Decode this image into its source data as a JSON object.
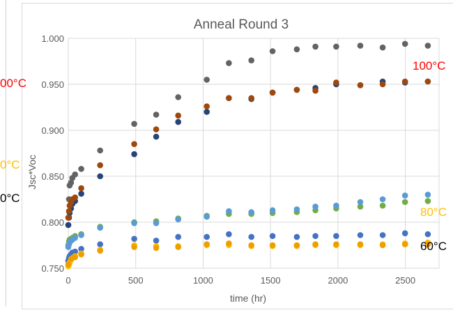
{
  "chart_data": {
    "type": "scatter",
    "title": "Anneal Round 3",
    "xlabel": "time (hr)",
    "ylabel": "Jsc*Voc",
    "xlim": [
      0,
      2750
    ],
    "ylim": [
      0.75,
      1.0
    ],
    "x_ticks": [
      "0",
      "500",
      "1000",
      "1500",
      "2000",
      "2500"
    ],
    "y_ticks": [
      "0.750",
      "0.800",
      "0.850",
      "0.900",
      "0.950",
      "1.000"
    ],
    "grid": true,
    "legend": "none",
    "series": [
      {
        "color": "#636363",
        "points": [
          [
            0,
            0.797
          ],
          [
            5,
            0.825
          ],
          [
            10,
            0.84
          ],
          [
            20,
            0.843
          ],
          [
            30,
            0.848
          ],
          [
            50,
            0.852
          ],
          [
            96,
            0.858
          ],
          [
            236,
            0.878
          ],
          [
            489,
            0.907
          ],
          [
            652,
            0.917
          ],
          [
            815,
            0.936
          ],
          [
            1027,
            0.955
          ],
          [
            1191,
            0.973
          ],
          [
            1358,
            0.976
          ],
          [
            1515,
            0.986
          ],
          [
            1695,
            0.988
          ],
          [
            1833,
            0.991
          ],
          [
            1987,
            0.991
          ],
          [
            2166,
            0.992
          ],
          [
            2332,
            0.99
          ],
          [
            2498,
            0.994
          ],
          [
            2667,
            0.992
          ]
        ]
      },
      {
        "color": "#264478",
        "points": [
          [
            0,
            0.797
          ],
          [
            5,
            0.805
          ],
          [
            10,
            0.81
          ],
          [
            20,
            0.815
          ],
          [
            30,
            0.82
          ],
          [
            50,
            0.823
          ],
          [
            96,
            0.831
          ],
          [
            236,
            0.85
          ],
          [
            489,
            0.874
          ],
          [
            652,
            0.893
          ],
          [
            815,
            0.909
          ],
          [
            1027,
            0.92
          ],
          [
            1191,
            0.935
          ],
          [
            1358,
            0.934
          ],
          [
            1515,
            0.941
          ],
          [
            1695,
            0.944
          ],
          [
            1833,
            0.946
          ],
          [
            1987,
            0.95
          ],
          [
            2166,
            0.949
          ],
          [
            2332,
            0.953
          ],
          [
            2498,
            0.952
          ],
          [
            2667,
            0.953
          ]
        ]
      },
      {
        "color": "#9e480e",
        "points": [
          [
            0,
            0.805
          ],
          [
            5,
            0.812
          ],
          [
            10,
            0.818
          ],
          [
            20,
            0.822
          ],
          [
            30,
            0.825
          ],
          [
            50,
            0.827
          ],
          [
            96,
            0.837
          ],
          [
            236,
            0.862
          ],
          [
            489,
            0.885
          ],
          [
            652,
            0.901
          ],
          [
            815,
            0.916
          ],
          [
            1027,
            0.926
          ],
          [
            1191,
            0.935
          ],
          [
            1358,
            0.935
          ],
          [
            1515,
            0.941
          ],
          [
            1695,
            0.944
          ],
          [
            1833,
            0.943
          ],
          [
            1987,
            0.952
          ],
          [
            2166,
            0.949
          ],
          [
            2332,
            0.95
          ],
          [
            2498,
            0.953
          ],
          [
            2667,
            0.953
          ]
        ]
      },
      {
        "color": "#70ad47",
        "points": [
          [
            0,
            0.775
          ],
          [
            5,
            0.779
          ],
          [
            10,
            0.781
          ],
          [
            20,
            0.782
          ],
          [
            30,
            0.783
          ],
          [
            50,
            0.785
          ],
          [
            96,
            0.787
          ],
          [
            236,
            0.795
          ],
          [
            489,
            0.8
          ],
          [
            652,
            0.801
          ],
          [
            815,
            0.804
          ],
          [
            1027,
            0.807
          ],
          [
            1191,
            0.809
          ],
          [
            1358,
            0.809
          ],
          [
            1515,
            0.81
          ],
          [
            1695,
            0.811
          ],
          [
            1833,
            0.813
          ],
          [
            1987,
            0.815
          ],
          [
            2166,
            0.817
          ],
          [
            2332,
            0.818
          ],
          [
            2498,
            0.822
          ],
          [
            2667,
            0.823
          ]
        ]
      },
      {
        "color": "#5b9bd5",
        "points": [
          [
            0,
            0.773
          ],
          [
            5,
            0.776
          ],
          [
            10,
            0.778
          ],
          [
            20,
            0.78
          ],
          [
            30,
            0.781
          ],
          [
            50,
            0.783
          ],
          [
            96,
            0.786
          ],
          [
            236,
            0.794
          ],
          [
            489,
            0.799
          ],
          [
            652,
            0.799
          ],
          [
            815,
            0.803
          ],
          [
            1027,
            0.806
          ],
          [
            1191,
            0.812
          ],
          [
            1358,
            0.811
          ],
          [
            1515,
            0.813
          ],
          [
            1695,
            0.814
          ],
          [
            1833,
            0.817
          ],
          [
            1987,
            0.818
          ],
          [
            2166,
            0.822
          ],
          [
            2332,
            0.825
          ],
          [
            2498,
            0.829
          ],
          [
            2667,
            0.83
          ]
        ]
      },
      {
        "color": "#4472c4",
        "points": [
          [
            0,
            0.758
          ],
          [
            5,
            0.761
          ],
          [
            10,
            0.763
          ],
          [
            20,
            0.765
          ],
          [
            30,
            0.767
          ],
          [
            50,
            0.768
          ],
          [
            96,
            0.771
          ],
          [
            236,
            0.776
          ],
          [
            489,
            0.782
          ],
          [
            652,
            0.78
          ],
          [
            815,
            0.784
          ],
          [
            1027,
            0.784
          ],
          [
            1191,
            0.787
          ],
          [
            1358,
            0.784
          ],
          [
            1515,
            0.785
          ],
          [
            1695,
            0.784
          ],
          [
            1833,
            0.785
          ],
          [
            1987,
            0.785
          ],
          [
            2166,
            0.786
          ],
          [
            2332,
            0.786
          ],
          [
            2498,
            0.788
          ],
          [
            2667,
            0.787
          ]
        ]
      },
      {
        "color": "#ffc000",
        "points": [
          [
            0,
            0.752
          ],
          [
            5,
            0.754
          ],
          [
            10,
            0.756
          ],
          [
            20,
            0.759
          ],
          [
            30,
            0.761
          ],
          [
            50,
            0.763
          ],
          [
            96,
            0.766
          ],
          [
            236,
            0.77
          ],
          [
            489,
            0.775
          ],
          [
            652,
            0.774
          ],
          [
            815,
            0.774
          ],
          [
            1027,
            0.775
          ],
          [
            1191,
            0.775
          ],
          [
            1358,
            0.774
          ],
          [
            1515,
            0.774
          ],
          [
            1695,
            0.774
          ],
          [
            1833,
            0.775
          ],
          [
            1987,
            0.775
          ],
          [
            2166,
            0.775
          ],
          [
            2332,
            0.776
          ],
          [
            2498,
            0.777
          ],
          [
            2667,
            0.778
          ]
        ]
      },
      {
        "color": "#ed9f00",
        "points": [
          [
            0,
            0.754
          ],
          [
            20,
            0.76
          ],
          [
            50,
            0.762
          ],
          [
            96,
            0.765
          ],
          [
            236,
            0.769
          ],
          [
            489,
            0.773
          ],
          [
            652,
            0.772
          ],
          [
            815,
            0.773
          ],
          [
            1027,
            0.776
          ],
          [
            1191,
            0.777
          ],
          [
            1358,
            0.775
          ],
          [
            1515,
            0.775
          ],
          [
            1695,
            0.775
          ],
          [
            1833,
            0.776
          ],
          [
            1987,
            0.776
          ],
          [
            2166,
            0.776
          ],
          [
            2332,
            0.775
          ],
          [
            2498,
            0.776
          ],
          [
            2667,
            0.776
          ]
        ]
      }
    ],
    "annotations": [
      {
        "text": "00°C",
        "color": "#ff0000"
      },
      {
        "text": "100°C",
        "color": "#ff0000"
      },
      {
        "text": "0°C",
        "color": "#ffc000"
      },
      {
        "text": "0°C",
        "color": "#000000"
      },
      {
        "text": "80°C",
        "color": "#ffc000"
      },
      {
        "text": "60°C",
        "color": "#000000"
      }
    ]
  }
}
